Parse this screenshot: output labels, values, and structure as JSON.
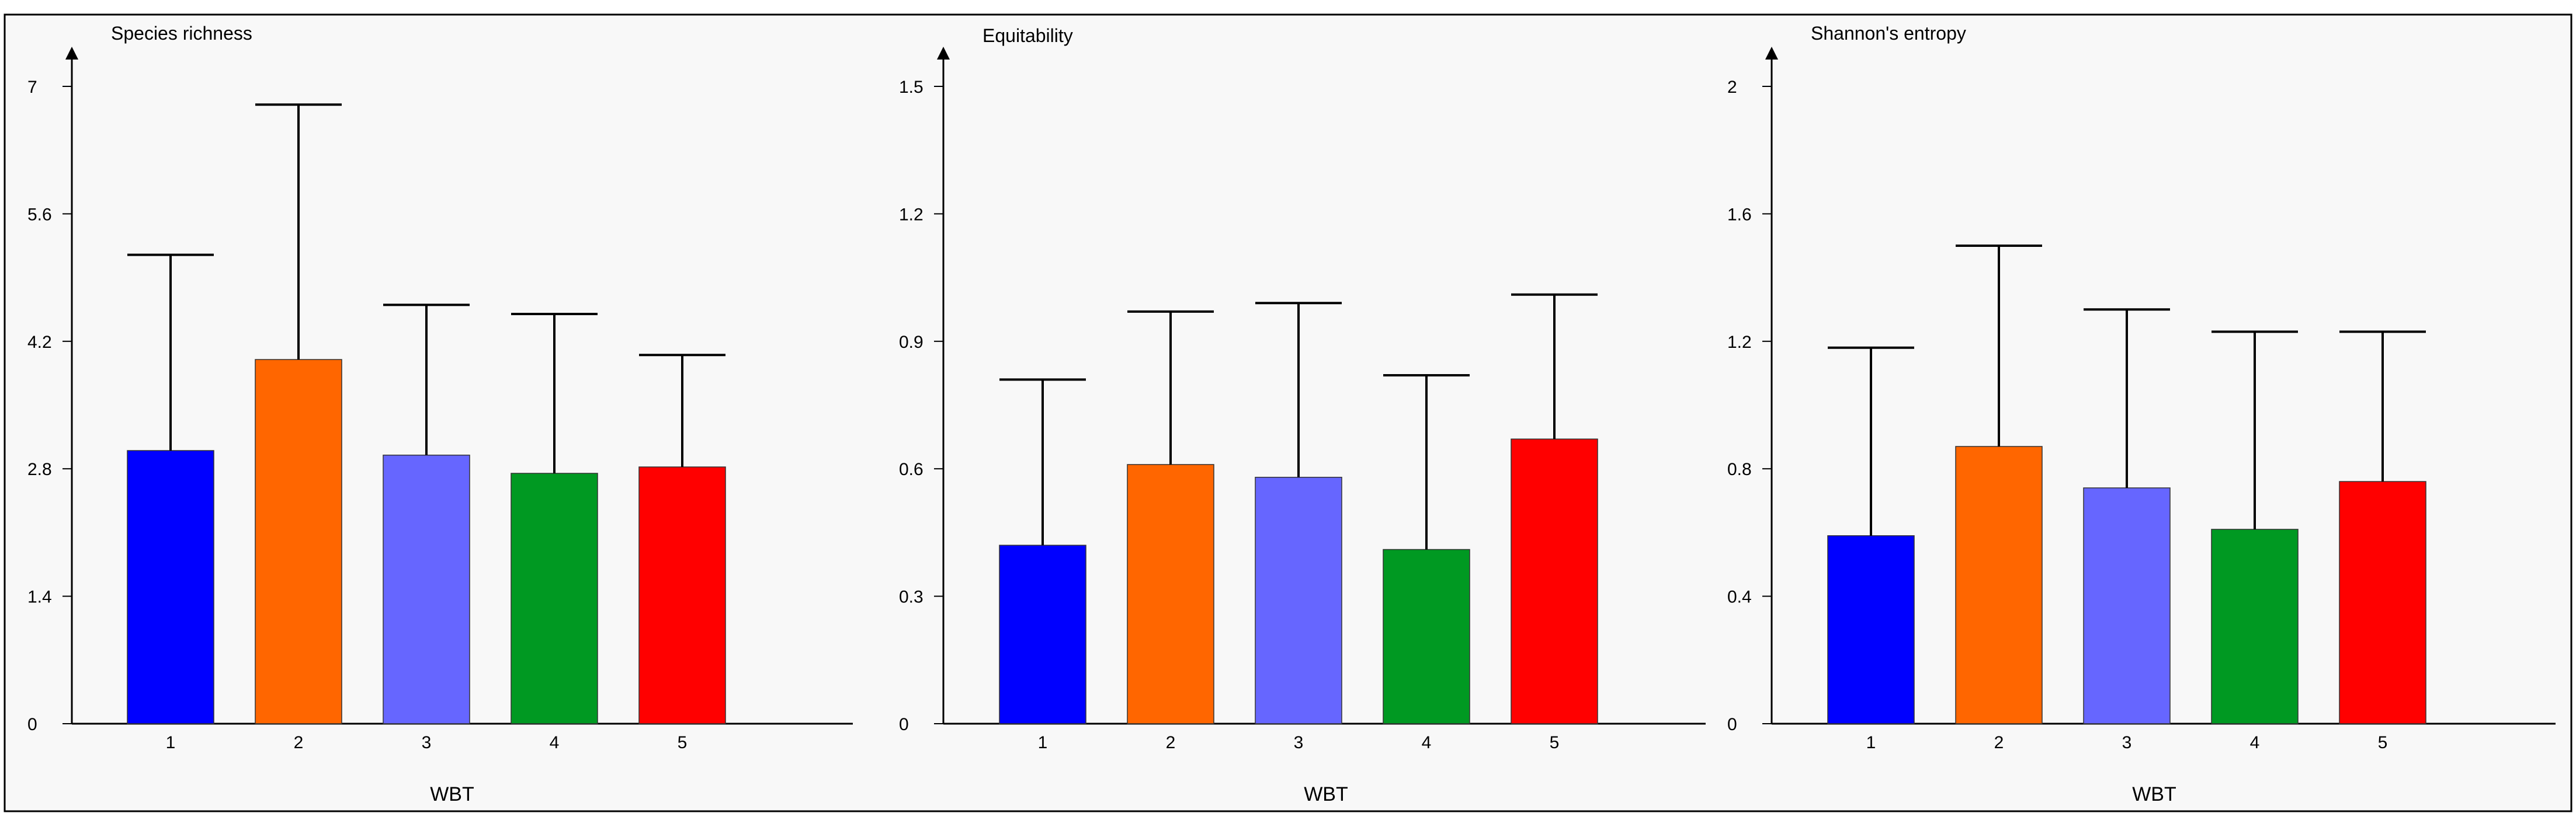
{
  "chart_data": [
    {
      "type": "bar",
      "title": "Species richness",
      "xlabel": "WBT",
      "ylabel": "Species richness",
      "categories": [
        "1",
        "2",
        "3",
        "4",
        "5"
      ],
      "values": [
        3.0,
        4.0,
        2.95,
        2.75,
        2.82
      ],
      "error_upper": [
        5.15,
        6.8,
        4.6,
        4.5,
        4.05
      ],
      "ylim": [
        0,
        7
      ],
      "yticks": [
        0,
        1.4,
        2.8,
        4.2,
        5.6,
        7
      ],
      "ytick_labels": [
        "0",
        "1.4",
        "2.8",
        "4.2",
        "5.6",
        "7"
      ]
    },
    {
      "type": "bar",
      "title": "Equitability",
      "xlabel": "WBT",
      "ylabel": "Equitability",
      "categories": [
        "1",
        "2",
        "3",
        "4",
        "5"
      ],
      "values": [
        0.42,
        0.61,
        0.58,
        0.41,
        0.67
      ],
      "error_upper": [
        0.81,
        0.97,
        0.99,
        0.82,
        1.01
      ],
      "ylim": [
        0,
        1.5
      ],
      "yticks": [
        0,
        0.3,
        0.6,
        0.9,
        1.2,
        1.5
      ],
      "ytick_labels": [
        "0",
        "0.3",
        "0.6",
        "0.9",
        "1.2",
        "1.5"
      ]
    },
    {
      "type": "bar",
      "title": "Shannon's entropy",
      "xlabel": "WBT",
      "ylabel": "Shannon's entropy",
      "categories": [
        "1",
        "2",
        "3",
        "4",
        "5"
      ],
      "values": [
        0.59,
        0.87,
        0.74,
        0.61,
        0.76
      ],
      "error_upper": [
        1.18,
        1.5,
        1.3,
        1.23,
        1.23
      ],
      "ylim": [
        0,
        2
      ],
      "yticks": [
        0,
        0.4,
        0.8,
        1.2,
        1.6,
        2
      ],
      "ytick_labels": [
        "0",
        "0.4",
        "0.8",
        "1.2",
        "1.6",
        "2"
      ]
    }
  ],
  "colors": [
    "#0000ff",
    "#ff6600",
    "#6666ff",
    "#009922",
    "#ff0000"
  ]
}
